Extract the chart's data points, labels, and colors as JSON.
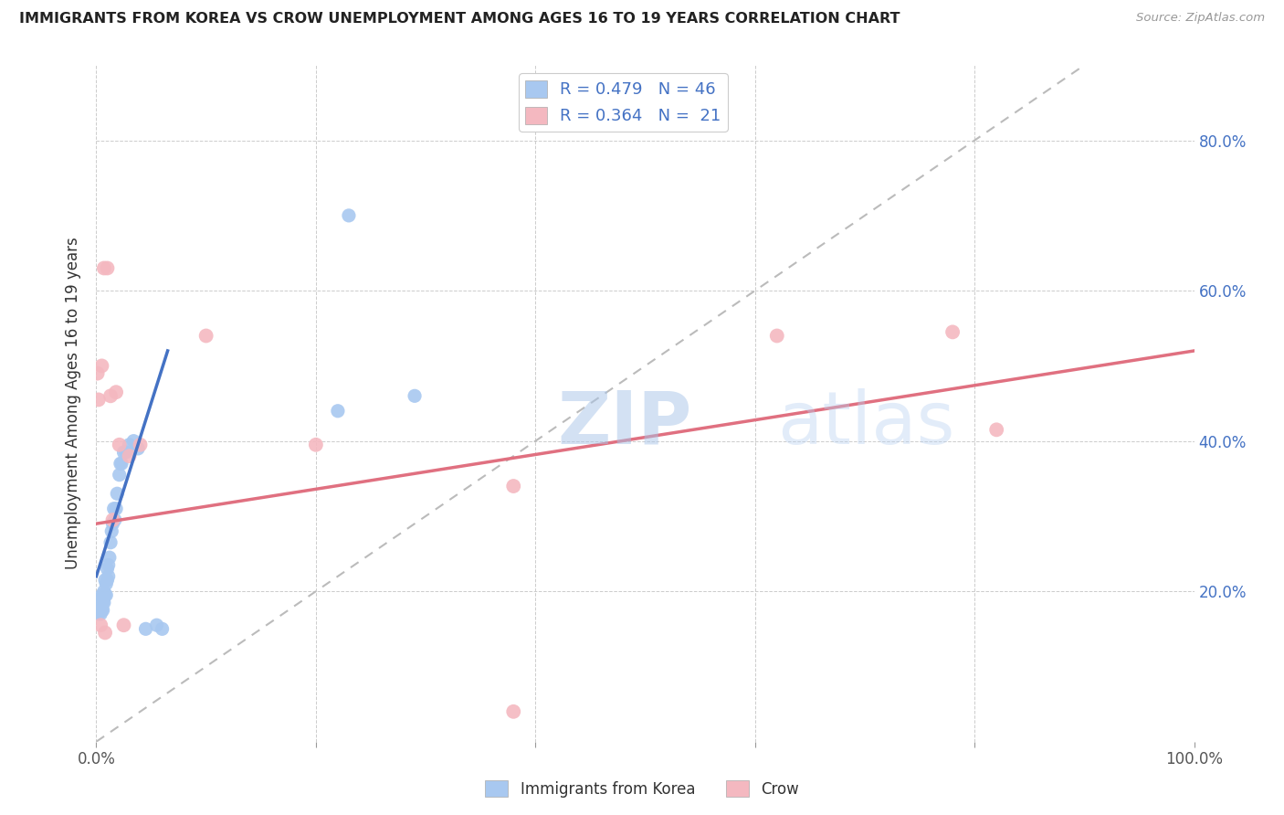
{
  "title": "IMMIGRANTS FROM KOREA VS CROW UNEMPLOYMENT AMONG AGES 16 TO 19 YEARS CORRELATION CHART",
  "source": "Source: ZipAtlas.com",
  "ylabel": "Unemployment Among Ages 16 to 19 years",
  "xlim": [
    0,
    1.0
  ],
  "ylim": [
    0,
    0.9
  ],
  "legend_r1": "R = 0.479",
  "legend_n1": "N = 46",
  "legend_r2": "R = 0.364",
  "legend_n2": "N =  21",
  "color_blue": "#a8c8f0",
  "color_pink": "#f4b8c0",
  "color_blue_dark": "#4472c4",
  "color_pink_dark": "#e07080",
  "diagonal_color": "#bbbbbb",
  "watermark": "ZIPatlas",
  "blue_line_x": [
    0.0,
    0.065
  ],
  "blue_line_y": [
    0.22,
    0.52
  ],
  "pink_line_x": [
    0.0,
    1.0
  ],
  "pink_line_y": [
    0.29,
    0.52
  ],
  "blue_scatter_x": [
    0.001,
    0.002,
    0.002,
    0.003,
    0.003,
    0.004,
    0.004,
    0.004,
    0.005,
    0.005,
    0.005,
    0.006,
    0.006,
    0.006,
    0.007,
    0.007,
    0.008,
    0.008,
    0.009,
    0.009,
    0.01,
    0.01,
    0.011,
    0.011,
    0.012,
    0.013,
    0.014,
    0.015,
    0.016,
    0.017,
    0.018,
    0.019,
    0.021,
    0.022,
    0.023,
    0.025,
    0.027,
    0.03,
    0.034,
    0.038,
    0.045,
    0.055,
    0.06,
    0.22,
    0.23,
    0.29
  ],
  "blue_scatter_y": [
    0.175,
    0.17,
    0.185,
    0.175,
    0.18,
    0.17,
    0.18,
    0.19,
    0.175,
    0.185,
    0.195,
    0.175,
    0.185,
    0.195,
    0.185,
    0.2,
    0.195,
    0.215,
    0.195,
    0.21,
    0.215,
    0.23,
    0.22,
    0.235,
    0.245,
    0.265,
    0.28,
    0.29,
    0.31,
    0.295,
    0.31,
    0.33,
    0.355,
    0.37,
    0.37,
    0.385,
    0.385,
    0.395,
    0.4,
    0.39,
    0.15,
    0.155,
    0.15,
    0.44,
    0.7,
    0.46
  ],
  "pink_scatter_x": [
    0.001,
    0.002,
    0.004,
    0.005,
    0.007,
    0.008,
    0.01,
    0.013,
    0.015,
    0.018,
    0.021,
    0.025,
    0.03,
    0.04,
    0.1,
    0.2,
    0.38,
    0.62,
    0.78,
    0.82,
    0.38
  ],
  "pink_scatter_y": [
    0.49,
    0.455,
    0.155,
    0.5,
    0.63,
    0.145,
    0.63,
    0.46,
    0.295,
    0.465,
    0.395,
    0.155,
    0.38,
    0.395,
    0.54,
    0.395,
    0.34,
    0.54,
    0.545,
    0.415,
    0.04
  ]
}
